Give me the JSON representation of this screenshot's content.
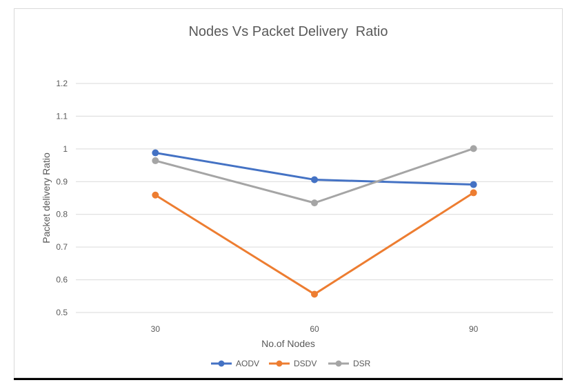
{
  "chart_data": {
    "type": "line",
    "title": "Nodes Vs Packet Delivery  Ratio",
    "xlabel": "No.of Nodes",
    "ylabel": "Packet delivery Ratio",
    "categories": [
      "30",
      "60",
      "90"
    ],
    "ylim": [
      0.5,
      1.2
    ],
    "yticks": [
      0.5,
      0.6,
      0.7,
      0.8,
      0.9,
      1,
      1.1,
      1.2
    ],
    "grid": true,
    "legend_position": "bottom",
    "series": [
      {
        "name": "AODV",
        "color": "#4472c4",
        "values": [
          0.988,
          0.906,
          0.891
        ]
      },
      {
        "name": "DSDV",
        "color": "#ed7d31",
        "values": [
          0.859,
          0.556,
          0.866
        ]
      },
      {
        "name": "DSR",
        "color": "#a5a5a5",
        "values": [
          0.964,
          0.835,
          1.001
        ]
      }
    ]
  }
}
